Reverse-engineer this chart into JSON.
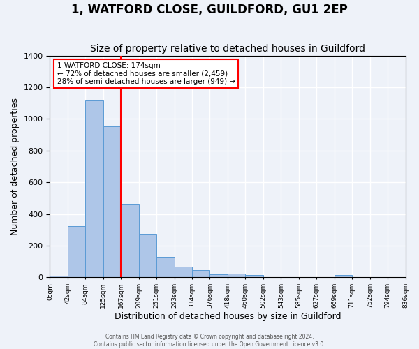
{
  "title": "1, WATFORD CLOSE, GUILDFORD, GU1 2EP",
  "subtitle": "Size of property relative to detached houses in Guildford",
  "xlabel": "Distribution of detached houses by size in Guildford",
  "ylabel": "Number of detached properties",
  "bin_labels": [
    "0sqm",
    "42sqm",
    "84sqm",
    "125sqm",
    "167sqm",
    "209sqm",
    "251sqm",
    "293sqm",
    "334sqm",
    "376sqm",
    "418sqm",
    "460sqm",
    "502sqm",
    "543sqm",
    "585sqm",
    "627sqm",
    "669sqm",
    "711sqm",
    "752sqm",
    "794sqm",
    "836sqm"
  ],
  "bar_heights": [
    10,
    325,
    1120,
    955,
    465,
    275,
    128,
    68,
    48,
    20,
    25,
    15,
    3,
    0,
    0,
    0,
    13,
    0,
    0,
    0
  ],
  "bar_color": "#aec6e8",
  "bar_edge_color": "#5b9bd5",
  "vline_x": 4,
  "vline_color": "red",
  "annotation_box_text": "1 WATFORD CLOSE: 174sqm\n← 72% of detached houses are smaller (2,459)\n28% of semi-detached houses are larger (949) →",
  "box_edge_color": "red",
  "ylim": [
    0,
    1400
  ],
  "yticks": [
    0,
    200,
    400,
    600,
    800,
    1000,
    1200,
    1400
  ],
  "bg_color": "#eef2f9",
  "grid_color": "#ffffff",
  "footer_line1": "Contains HM Land Registry data © Crown copyright and database right 2024.",
  "footer_line2": "Contains public sector information licensed under the Open Government Licence v3.0.",
  "title_fontsize": 12,
  "subtitle_fontsize": 10
}
